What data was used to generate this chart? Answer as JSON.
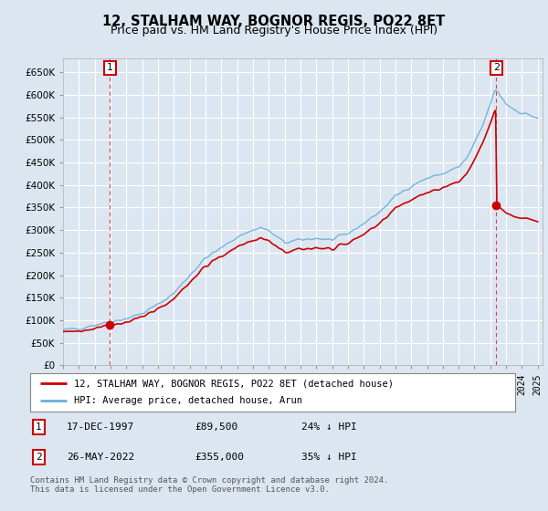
{
  "title": "12, STALHAM WAY, BOGNOR REGIS, PO22 8ET",
  "subtitle": "Price paid vs. HM Land Registry's House Price Index (HPI)",
  "ytick_values": [
    0,
    50000,
    100000,
    150000,
    200000,
    250000,
    300000,
    350000,
    400000,
    450000,
    500000,
    550000,
    600000,
    650000
  ],
  "ylim": [
    0,
    680000
  ],
  "xlim_start": 1995.0,
  "xlim_end": 2025.3,
  "hpi_color": "#6baed6",
  "property_color": "#cc0000",
  "background_color": "#dce6f1",
  "grid_color": "#ffffff",
  "purchase1_x": 1997.96,
  "purchase1_y": 89500,
  "purchase2_x": 2022.38,
  "purchase2_y": 355000,
  "legend_line1": "12, STALHAM WAY, BOGNOR REGIS, PO22 8ET (detached house)",
  "legend_line2": "HPI: Average price, detached house, Arun",
  "purchase1_date": "17-DEC-1997",
  "purchase1_price": "£89,500",
  "purchase1_hpi": "24% ↓ HPI",
  "purchase2_date": "26-MAY-2022",
  "purchase2_price": "£355,000",
  "purchase2_hpi": "35% ↓ HPI",
  "footer": "Contains HM Land Registry data © Crown copyright and database right 2024.\nThis data is licensed under the Open Government Licence v3.0."
}
